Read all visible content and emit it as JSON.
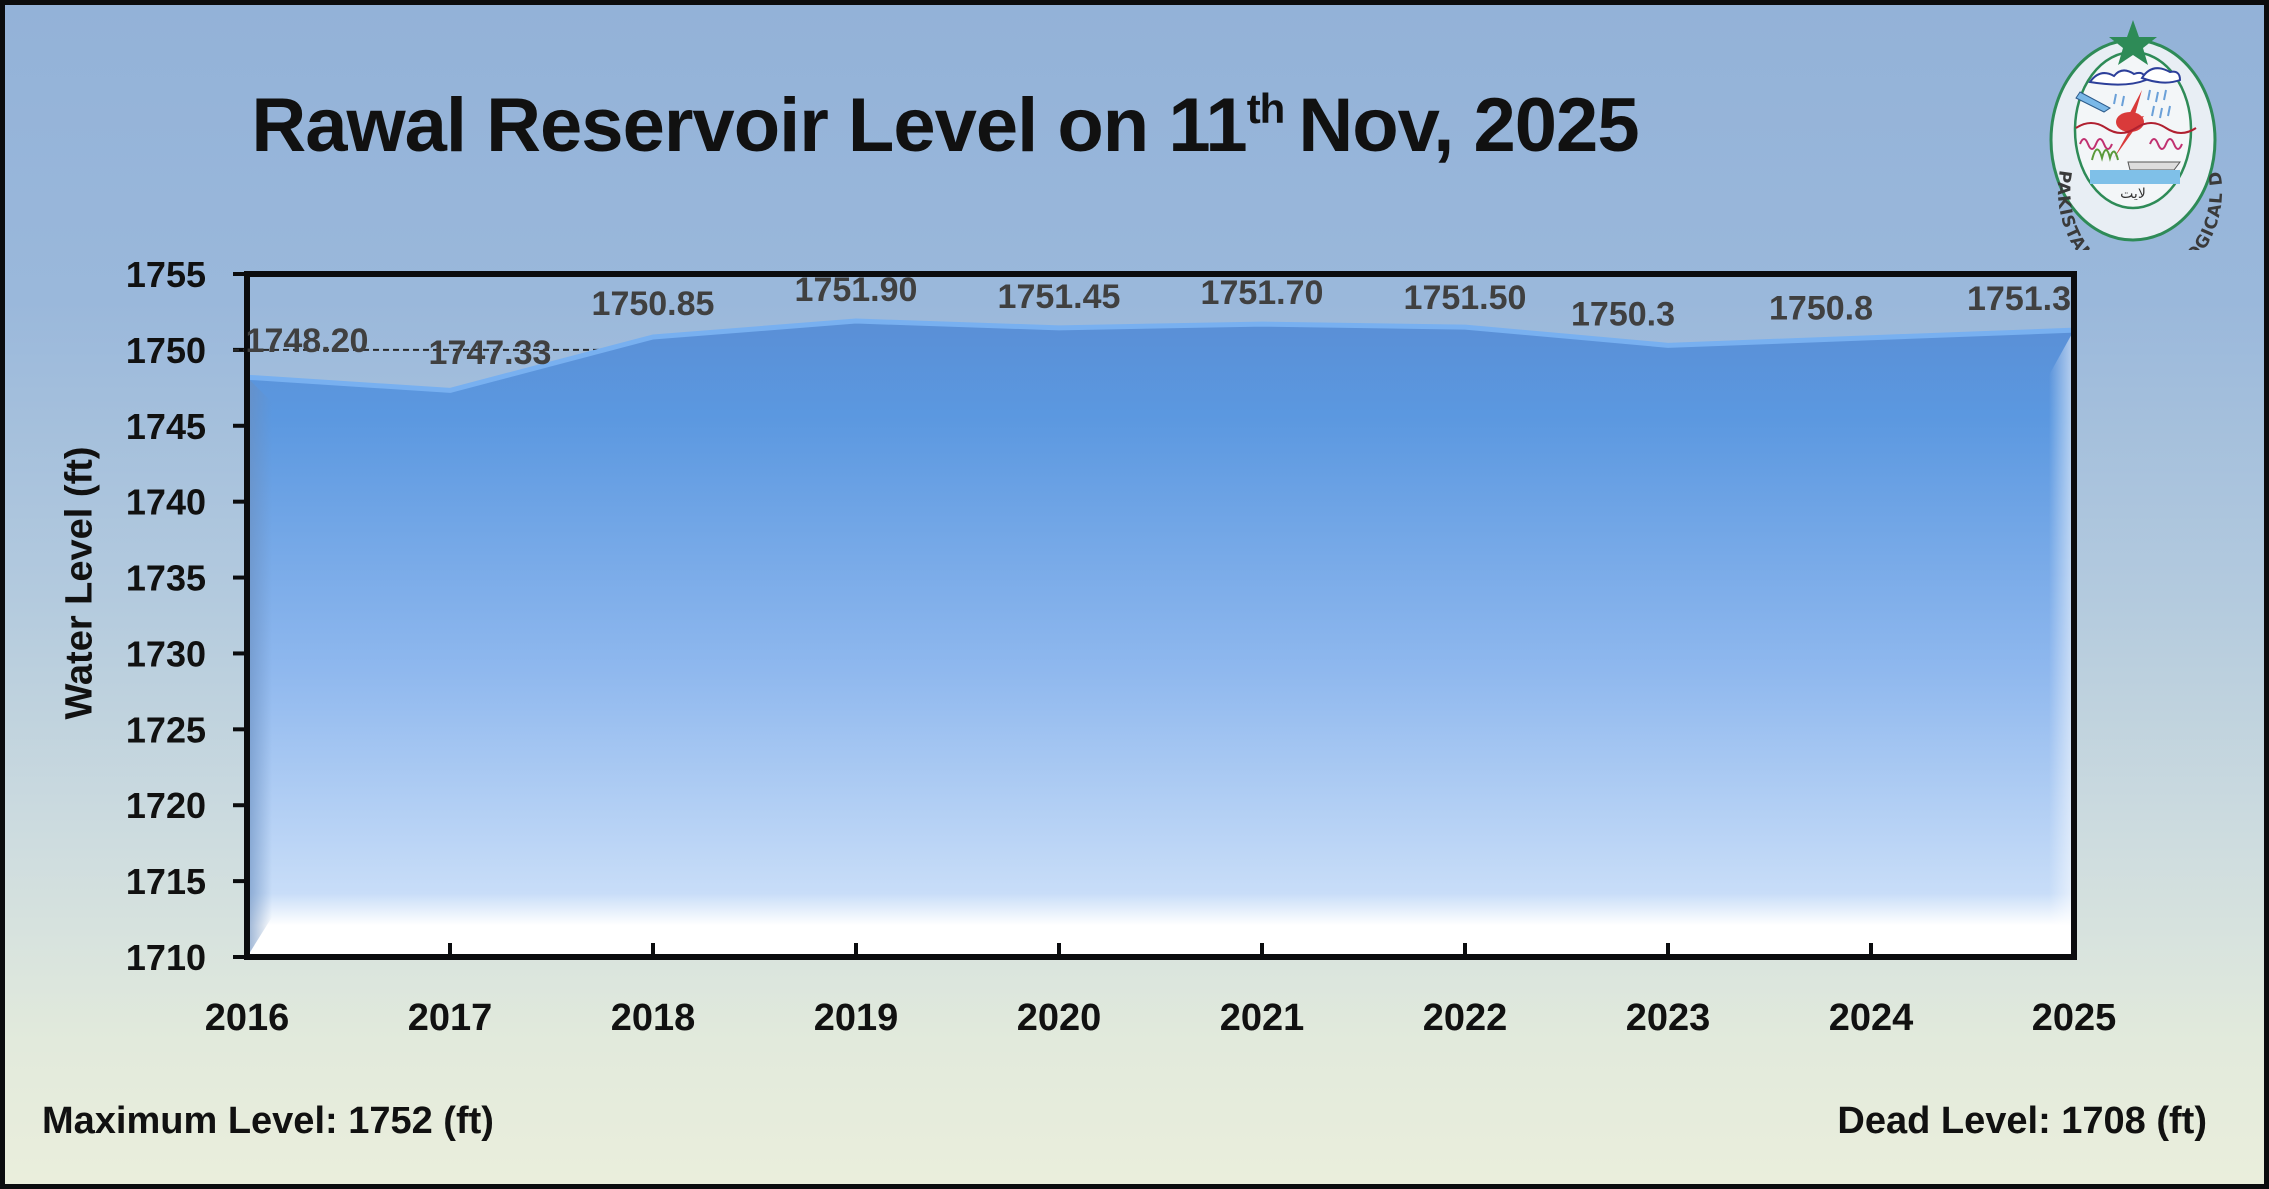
{
  "title": {
    "prefix": "Rawal Reservoir Level on 11",
    "superscript": "th",
    "suffix": "Nov, 2025"
  },
  "logo": {
    "name": "Pakistan Meteorological Department",
    "text_ring": "PAKISTAN METEOROLOGICAL DEPARTMENT"
  },
  "footer": {
    "max_level": "Maximum Level: 1752 (ft)",
    "dead_level": "Dead Level: 1708 (ft)"
  },
  "colors": {
    "area_top": "#5b96de",
    "area_bottom": "#c6dcf8",
    "line": "#6aa6ea",
    "axis": "#0b0c0e",
    "label": "#3f3f3f"
  },
  "chart_data": {
    "type": "area",
    "title": "Rawal Reservoir Level on 11th Nov, 2025",
    "xlabel": "",
    "ylabel": "Water Level (ft)",
    "categories": [
      "2016",
      "2017",
      "2018",
      "2019",
      "2020",
      "2021",
      "2022",
      "2023",
      "2024",
      "2025"
    ],
    "series": [
      {
        "name": "Water Level (ft)",
        "values": [
          1748.2,
          1747.33,
          1750.85,
          1751.9,
          1751.45,
          1751.7,
          1751.5,
          1750.3,
          1750.8,
          1751.3
        ],
        "labels": [
          "1748.20",
          "1747.33",
          "1750.85",
          "1751.90",
          "1751.45",
          "1751.70",
          "1751.50",
          "1750.3",
          "1750.8",
          "1751.3"
        ]
      }
    ],
    "ylim": [
      1710,
      1755
    ],
    "yticks": [
      1710,
      1715,
      1720,
      1725,
      1730,
      1735,
      1740,
      1745,
      1750,
      1755
    ],
    "reference_line": {
      "value": 1750,
      "style": "dashed"
    },
    "grid": false,
    "legend": "none",
    "annotations": [
      "Maximum Level: 1752 (ft)",
      "Dead Level: 1708 (ft)"
    ]
  }
}
